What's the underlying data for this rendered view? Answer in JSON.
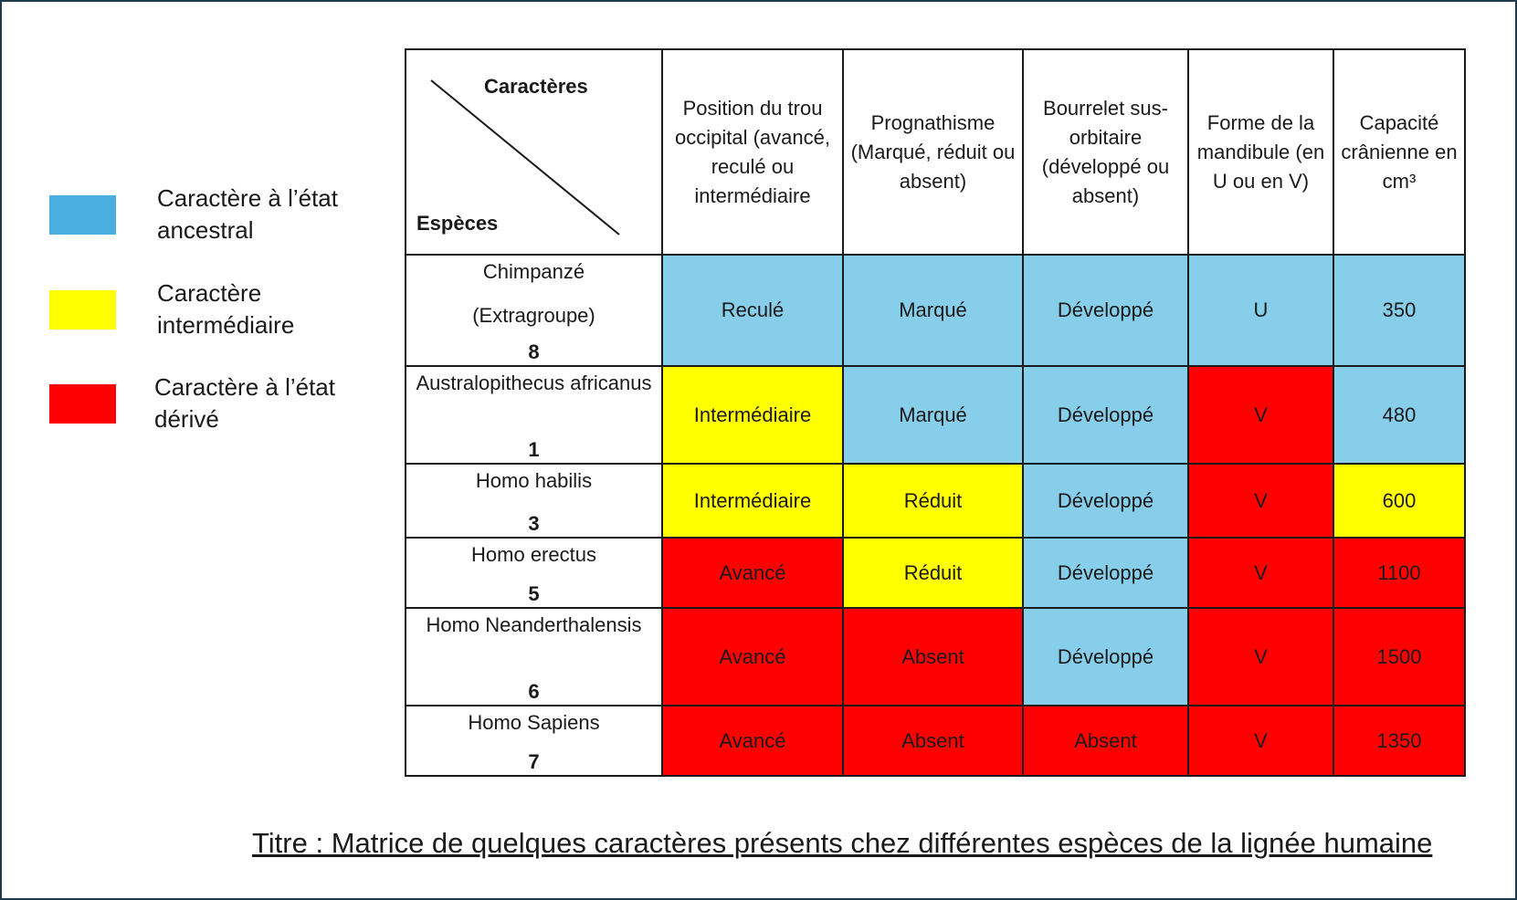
{
  "legend": [
    {
      "label": "Caractère à l’état ancestral",
      "color": "#4aaee0"
    },
    {
      "label": "Caractère intermédiaire",
      "color": "#ffff00"
    },
    {
      "label": "Caractère à l’état dérivé",
      "color": "#ff0000"
    }
  ],
  "header": {
    "corner_top": "Caractères",
    "corner_bottom": "Espèces",
    "columns": [
      "Position du trou occipital (avancé, reculé ou intermédiaire",
      "Prognathisme (Marqué, réduit ou absent)",
      "Bourrelet sus-orbitaire (développé ou absent)",
      "Forme de la mandibule (en U ou en V)",
      "Capacité crânienne en cm³"
    ]
  },
  "rows": [
    {
      "species": "Chimpanzé",
      "extra": "(Extragroupe)",
      "number": "8",
      "cells": [
        {
          "value": "Reculé",
          "state": "ancestral"
        },
        {
          "value": "Marqué",
          "state": "ancestral"
        },
        {
          "value": "Développé",
          "state": "ancestral"
        },
        {
          "value": "U",
          "state": "ancestral"
        },
        {
          "value": "350",
          "state": "ancestral"
        }
      ]
    },
    {
      "species": "Australopithecus africanus",
      "extra": "",
      "number": "1",
      "cells": [
        {
          "value": "Intermédiaire",
          "state": "intermediaire"
        },
        {
          "value": "Marqué",
          "state": "ancestral"
        },
        {
          "value": "Développé",
          "state": "ancestral"
        },
        {
          "value": "V",
          "state": "derive"
        },
        {
          "value": "480",
          "state": "ancestral"
        }
      ]
    },
    {
      "species": "Homo habilis",
      "extra": "",
      "number": "3",
      "cells": [
        {
          "value": "Intermédiaire",
          "state": "intermediaire"
        },
        {
          "value": "Réduit",
          "state": "intermediaire"
        },
        {
          "value": "Développé",
          "state": "ancestral"
        },
        {
          "value": "V",
          "state": "derive"
        },
        {
          "value": "600",
          "state": "intermediaire"
        }
      ]
    },
    {
      "species": "Homo erectus",
      "extra": "",
      "number": "5",
      "cells": [
        {
          "value": "Avancé",
          "state": "derive"
        },
        {
          "value": "Réduit",
          "state": "intermediaire"
        },
        {
          "value": "Développé",
          "state": "ancestral"
        },
        {
          "value": "V",
          "state": "derive"
        },
        {
          "value": "1100",
          "state": "derive"
        }
      ]
    },
    {
      "species": "Homo Neanderthalensis",
      "extra": "",
      "number": "6",
      "cells": [
        {
          "value": "Avancé",
          "state": "derive"
        },
        {
          "value": "Absent",
          "state": "derive"
        },
        {
          "value": "Développé",
          "state": "ancestral"
        },
        {
          "value": "V",
          "state": "derive"
        },
        {
          "value": "1500",
          "state": "derive"
        }
      ]
    },
    {
      "species": "Homo Sapiens",
      "extra": "",
      "number": "7",
      "cells": [
        {
          "value": "Avancé",
          "state": "derive"
        },
        {
          "value": "Absent",
          "state": "derive"
        },
        {
          "value": "Absent",
          "state": "derive"
        },
        {
          "value": "V",
          "state": "derive"
        },
        {
          "value": "1350",
          "state": "derive"
        }
      ]
    }
  ],
  "caption": "Titre : Matrice de quelques caractères présents chez différentes espèces de la lignée humaine"
}
